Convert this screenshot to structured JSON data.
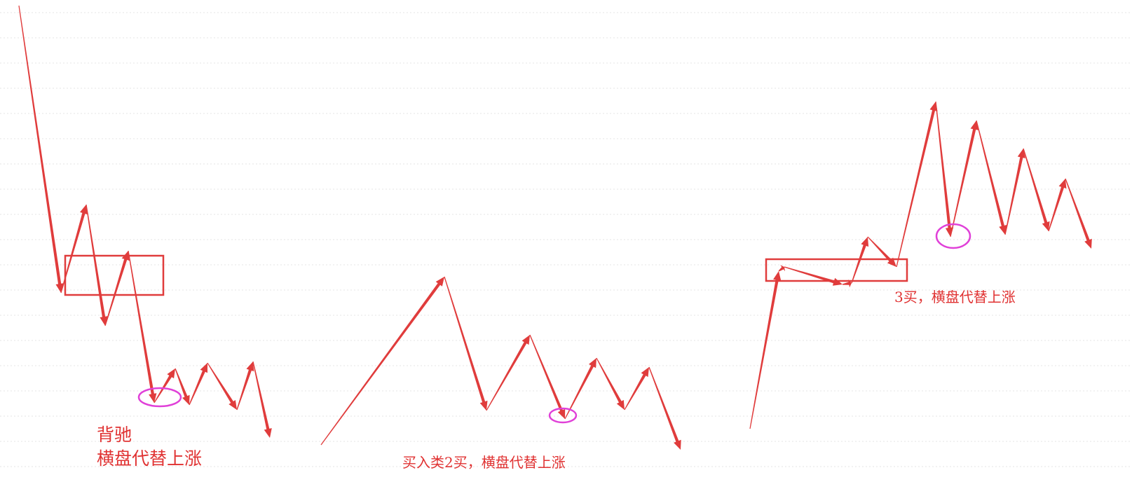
{
  "colors": {
    "line": "#e03c3c",
    "box": "#e03c3c",
    "ellipse": "#e040d8",
    "text": "#e03232",
    "grid": "#e6e6e6"
  },
  "annotations": {
    "divergence_line1": "背驰",
    "divergence_line2": "横盘代替上涨",
    "buy2": "买入类2买，横盘代替上涨",
    "buy3": "3买，横盘代替上涨"
  },
  "patterns": [
    {
      "name": "divergence",
      "box_count": 1,
      "circle_count": 1
    },
    {
      "name": "class-2-buy",
      "box_count": 0,
      "circle_count": 1
    },
    {
      "name": "third-buy",
      "box_count": 1,
      "circle_count": 1
    }
  ]
}
